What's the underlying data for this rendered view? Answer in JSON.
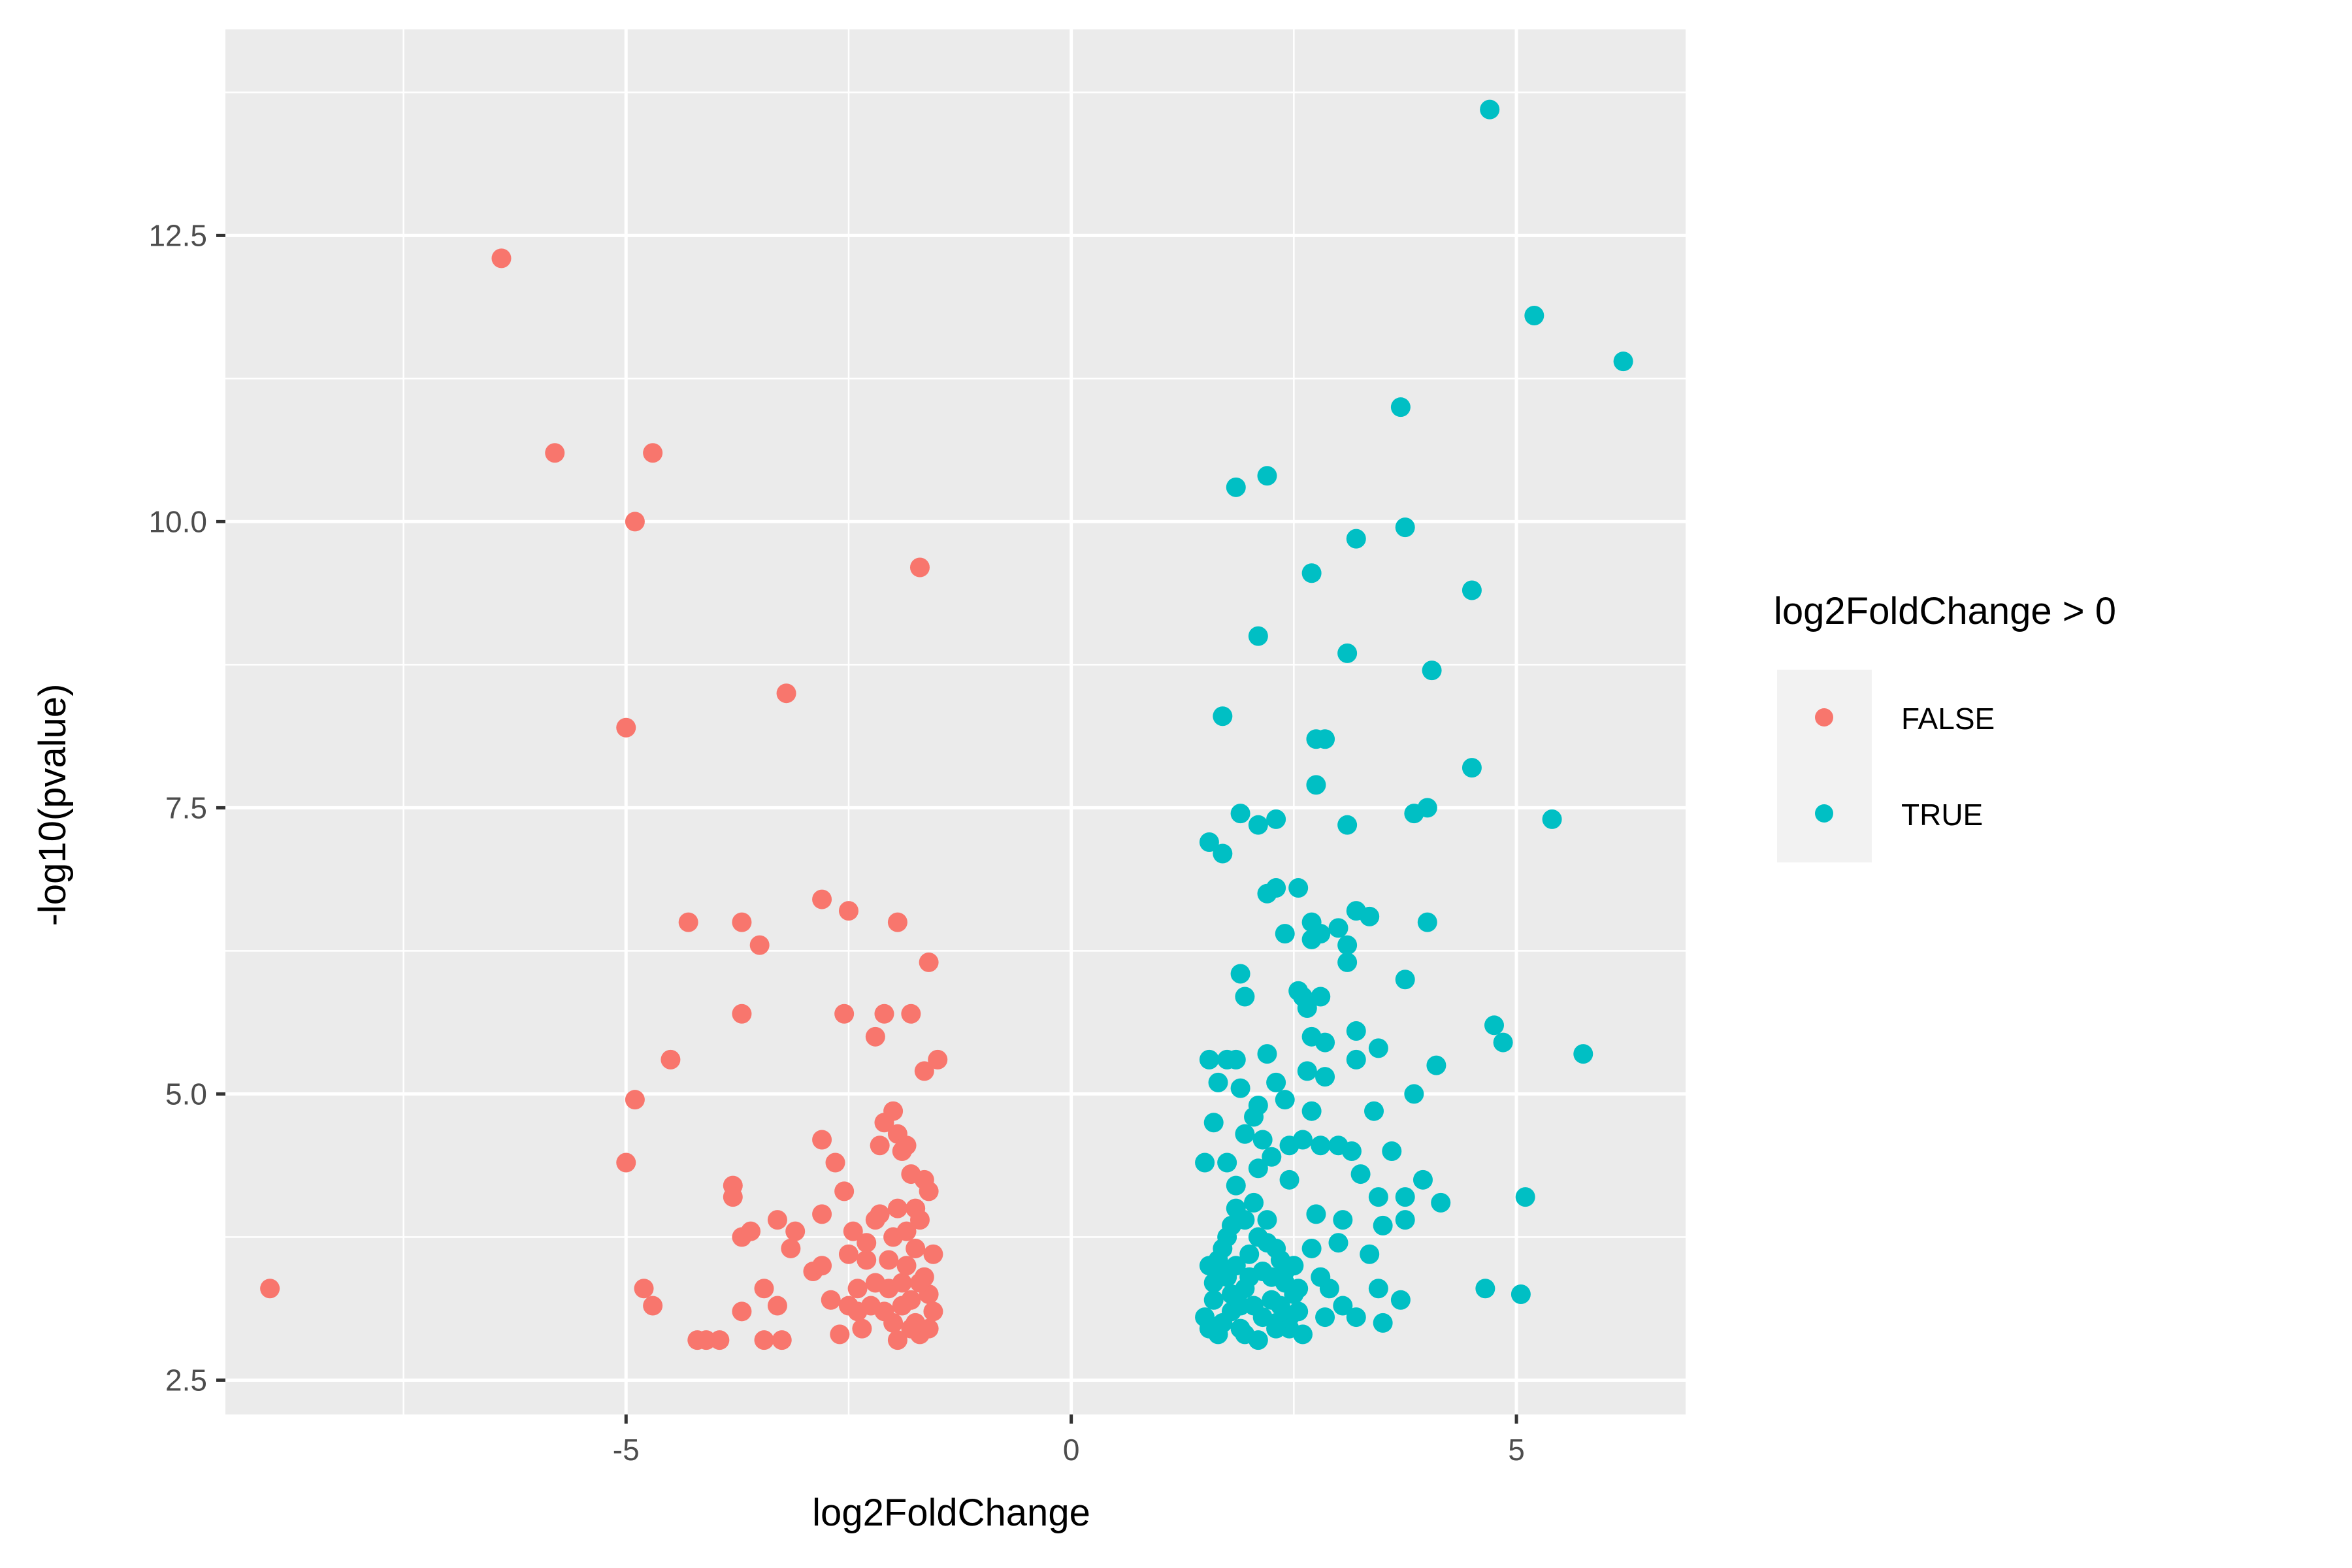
{
  "chart_data": {
    "type": "scatter",
    "title": "",
    "xlabel": "log2FoldChange",
    "ylabel": "-log10(pvalue)",
    "xlim": [
      -9.5,
      6.9
    ],
    "ylim": [
      2.2,
      14.3
    ],
    "x_ticks": [
      -5,
      0,
      5
    ],
    "x_tick_labels": [
      "-5",
      "0",
      "5"
    ],
    "y_ticks": [
      2.5,
      5.0,
      7.5,
      10.0,
      12.5
    ],
    "y_tick_labels": [
      "2.5",
      "5.0",
      "7.5",
      "10.0",
      "12.5"
    ],
    "grid": true,
    "legend_position": "right",
    "legend_title": "log2FoldChange > 0",
    "colors": {
      "panel": "#EBEBEB",
      "grid": "#FFFFFF",
      "FALSE": "#F8766D",
      "TRUE": "#00BFC4"
    },
    "series": [
      {
        "name": "FALSE",
        "points": [
          [
            -9.0,
            3.3
          ],
          [
            -6.4,
            12.3
          ],
          [
            -5.8,
            10.6
          ],
          [
            -4.7,
            10.6
          ],
          [
            -4.9,
            10.0
          ],
          [
            -1.7,
            9.6
          ],
          [
            -5.0,
            8.2
          ],
          [
            -3.2,
            8.5
          ],
          [
            -2.8,
            6.7
          ],
          [
            -2.5,
            6.6
          ],
          [
            -1.95,
            6.5
          ],
          [
            -4.3,
            6.5
          ],
          [
            -3.7,
            6.5
          ],
          [
            -3.5,
            6.3
          ],
          [
            -1.6,
            6.15
          ],
          [
            -3.7,
            5.7
          ],
          [
            -2.55,
            5.7
          ],
          [
            -2.1,
            5.7
          ],
          [
            -1.8,
            5.7
          ],
          [
            -2.2,
            5.5
          ],
          [
            -1.5,
            5.3
          ],
          [
            -1.65,
            5.2
          ],
          [
            -4.5,
            5.3
          ],
          [
            -4.9,
            4.95
          ],
          [
            -5.0,
            4.4
          ],
          [
            -4.8,
            3.3
          ],
          [
            -4.7,
            3.15
          ],
          [
            -4.2,
            2.85
          ],
          [
            -4.1,
            2.85
          ],
          [
            -3.95,
            2.85
          ],
          [
            -3.7,
            3.1
          ],
          [
            -3.45,
            2.85
          ],
          [
            -3.3,
            3.15
          ],
          [
            -3.25,
            2.85
          ],
          [
            -3.45,
            3.3
          ],
          [
            -3.8,
            4.2
          ],
          [
            -3.8,
            4.1
          ],
          [
            -3.7,
            3.75
          ],
          [
            -3.6,
            3.8
          ],
          [
            -3.3,
            3.9
          ],
          [
            -3.1,
            3.8
          ],
          [
            -3.15,
            3.65
          ],
          [
            -2.9,
            3.45
          ],
          [
            -2.8,
            3.5
          ],
          [
            -2.8,
            3.95
          ],
          [
            -2.7,
            3.2
          ],
          [
            -2.5,
            3.15
          ],
          [
            -2.6,
            2.9
          ],
          [
            -2.8,
            4.6
          ],
          [
            -2.65,
            4.4
          ],
          [
            -2.55,
            4.15
          ],
          [
            -2.5,
            3.6
          ],
          [
            -2.4,
            3.3
          ],
          [
            -2.35,
            2.95
          ],
          [
            -2.3,
            3.55
          ],
          [
            -2.2,
            3.9
          ],
          [
            -2.15,
            4.55
          ],
          [
            -2.1,
            4.75
          ],
          [
            -2.0,
            4.85
          ],
          [
            -1.95,
            4.65
          ],
          [
            -1.9,
            4.5
          ],
          [
            -1.85,
            4.55
          ],
          [
            -1.8,
            4.3
          ],
          [
            -1.75,
            4.0
          ],
          [
            -1.7,
            3.9
          ],
          [
            -1.65,
            4.25
          ],
          [
            -1.6,
            4.15
          ],
          [
            -1.55,
            3.6
          ],
          [
            -2.05,
            3.3
          ],
          [
            -2.1,
            3.1
          ],
          [
            -2.0,
            3.0
          ],
          [
            -1.95,
            2.85
          ],
          [
            -1.9,
            3.35
          ],
          [
            -1.85,
            3.5
          ],
          [
            -1.8,
            3.2
          ],
          [
            -1.75,
            3.0
          ],
          [
            -1.7,
            2.9
          ],
          [
            -1.65,
            3.4
          ],
          [
            -1.6,
            3.25
          ],
          [
            -1.55,
            3.1
          ],
          [
            -1.6,
            2.95
          ],
          [
            -2.2,
            3.35
          ],
          [
            -2.25,
            3.15
          ],
          [
            -2.0,
            3.75
          ],
          [
            -1.95,
            4.0
          ],
          [
            -1.85,
            3.8
          ],
          [
            -1.75,
            3.65
          ],
          [
            -2.3,
            3.7
          ],
          [
            -2.15,
            3.95
          ],
          [
            -1.9,
            3.15
          ],
          [
            -1.8,
            2.95
          ],
          [
            -1.7,
            3.35
          ],
          [
            -2.05,
            3.55
          ],
          [
            -2.4,
            3.1
          ],
          [
            -2.45,
            3.8
          ]
        ]
      },
      {
        "name": "TRUE",
        "points": [
          [
            4.7,
            13.6
          ],
          [
            5.2,
            11.8
          ],
          [
            6.2,
            11.4
          ],
          [
            3.7,
            11.0
          ],
          [
            2.2,
            10.4
          ],
          [
            1.85,
            10.3
          ],
          [
            3.2,
            9.85
          ],
          [
            3.75,
            9.95
          ],
          [
            2.7,
            9.55
          ],
          [
            4.5,
            9.4
          ],
          [
            2.1,
            9.0
          ],
          [
            3.1,
            8.85
          ],
          [
            4.05,
            8.7
          ],
          [
            1.7,
            8.3
          ],
          [
            2.75,
            8.1
          ],
          [
            2.85,
            8.1
          ],
          [
            2.75,
            7.7
          ],
          [
            4.5,
            7.85
          ],
          [
            1.9,
            7.45
          ],
          [
            2.1,
            7.35
          ],
          [
            2.3,
            7.4
          ],
          [
            3.1,
            7.35
          ],
          [
            3.85,
            7.45
          ],
          [
            4.0,
            7.5
          ],
          [
            5.4,
            7.4
          ],
          [
            1.55,
            7.2
          ],
          [
            1.7,
            7.1
          ],
          [
            2.3,
            6.8
          ],
          [
            2.55,
            6.8
          ],
          [
            2.2,
            6.75
          ],
          [
            2.7,
            6.5
          ],
          [
            2.8,
            6.4
          ],
          [
            3.0,
            6.45
          ],
          [
            2.4,
            6.4
          ],
          [
            2.7,
            6.35
          ],
          [
            3.2,
            6.6
          ],
          [
            3.35,
            6.55
          ],
          [
            3.1,
            6.3
          ],
          [
            3.1,
            6.15
          ],
          [
            4.0,
            6.5
          ],
          [
            1.9,
            6.05
          ],
          [
            1.95,
            5.85
          ],
          [
            2.55,
            5.9
          ],
          [
            2.65,
            5.75
          ],
          [
            2.6,
            5.85
          ],
          [
            2.8,
            5.85
          ],
          [
            3.75,
            6.0
          ],
          [
            4.75,
            5.6
          ],
          [
            4.85,
            5.45
          ],
          [
            5.75,
            5.35
          ],
          [
            1.55,
            5.3
          ],
          [
            1.75,
            5.3
          ],
          [
            1.85,
            5.3
          ],
          [
            2.2,
            5.35
          ],
          [
            2.7,
            5.5
          ],
          [
            2.85,
            5.45
          ],
          [
            3.2,
            5.55
          ],
          [
            3.45,
            5.4
          ],
          [
            3.2,
            5.3
          ],
          [
            4.1,
            5.25
          ],
          [
            1.65,
            5.1
          ],
          [
            1.9,
            5.05
          ],
          [
            2.1,
            4.9
          ],
          [
            2.3,
            5.1
          ],
          [
            2.4,
            4.95
          ],
          [
            2.65,
            5.2
          ],
          [
            2.85,
            5.15
          ],
          [
            2.7,
            4.85
          ],
          [
            3.0,
            4.55
          ],
          [
            3.15,
            4.5
          ],
          [
            3.4,
            4.85
          ],
          [
            3.6,
            4.5
          ],
          [
            3.85,
            5.0
          ],
          [
            1.6,
            4.75
          ],
          [
            1.95,
            4.65
          ],
          [
            2.05,
            4.8
          ],
          [
            2.15,
            4.6
          ],
          [
            2.25,
            4.45
          ],
          [
            2.45,
            4.55
          ],
          [
            2.6,
            4.6
          ],
          [
            2.8,
            4.55
          ],
          [
            1.5,
            4.4
          ],
          [
            1.75,
            4.4
          ],
          [
            1.85,
            4.2
          ],
          [
            2.1,
            4.35
          ],
          [
            2.45,
            4.25
          ],
          [
            3.25,
            4.3
          ],
          [
            3.45,
            4.1
          ],
          [
            3.75,
            4.1
          ],
          [
            3.95,
            4.25
          ],
          [
            4.15,
            4.05
          ],
          [
            5.1,
            4.1
          ],
          [
            3.5,
            3.85
          ],
          [
            3.75,
            3.9
          ],
          [
            3.35,
            3.6
          ],
          [
            3.05,
            3.9
          ],
          [
            3.0,
            3.7
          ],
          [
            2.7,
            3.65
          ],
          [
            2.75,
            3.95
          ],
          [
            3.45,
            3.3
          ],
          [
            3.7,
            3.2
          ],
          [
            3.5,
            3.0
          ],
          [
            4.65,
            3.3
          ],
          [
            5.05,
            3.25
          ],
          [
            2.85,
            3.05
          ],
          [
            2.9,
            3.3
          ],
          [
            3.05,
            3.15
          ],
          [
            3.2,
            3.05
          ],
          [
            2.8,
            3.4
          ],
          [
            1.55,
            3.5
          ],
          [
            1.6,
            3.2
          ],
          [
            1.65,
            2.9
          ],
          [
            1.7,
            3.65
          ],
          [
            1.75,
            3.4
          ],
          [
            1.8,
            3.1
          ],
          [
            1.85,
            3.5
          ],
          [
            1.9,
            2.95
          ],
          [
            1.95,
            3.3
          ],
          [
            2.0,
            3.6
          ],
          [
            2.05,
            3.15
          ],
          [
            2.1,
            2.85
          ],
          [
            2.15,
            3.45
          ],
          [
            2.2,
            3.7
          ],
          [
            2.25,
            3.2
          ],
          [
            2.3,
            3.0
          ],
          [
            2.35,
            3.55
          ],
          [
            2.4,
            3.35
          ],
          [
            2.45,
            3.05
          ],
          [
            2.5,
            3.25
          ],
          [
            2.55,
            3.1
          ],
          [
            2.6,
            2.9
          ],
          [
            1.5,
            3.05
          ],
          [
            1.55,
            2.95
          ],
          [
            1.6,
            3.35
          ],
          [
            1.7,
            3.0
          ],
          [
            1.75,
            3.75
          ],
          [
            1.8,
            3.85
          ],
          [
            1.85,
            4.0
          ],
          [
            1.95,
            3.9
          ],
          [
            2.05,
            4.05
          ],
          [
            2.1,
            3.75
          ],
          [
            2.2,
            3.9
          ],
          [
            2.3,
            3.65
          ],
          [
            2.4,
            3.45
          ],
          [
            1.65,
            3.55
          ],
          [
            1.8,
            3.25
          ],
          [
            1.9,
            3.15
          ],
          [
            2.0,
            3.4
          ],
          [
            2.15,
            3.05
          ],
          [
            2.25,
            3.4
          ],
          [
            2.35,
            3.15
          ],
          [
            2.45,
            2.95
          ],
          [
            2.5,
            3.5
          ],
          [
            1.95,
            2.9
          ],
          [
            2.3,
            2.95
          ],
          [
            2.55,
            3.3
          ],
          [
            1.7,
            3.45
          ]
        ]
      }
    ]
  }
}
